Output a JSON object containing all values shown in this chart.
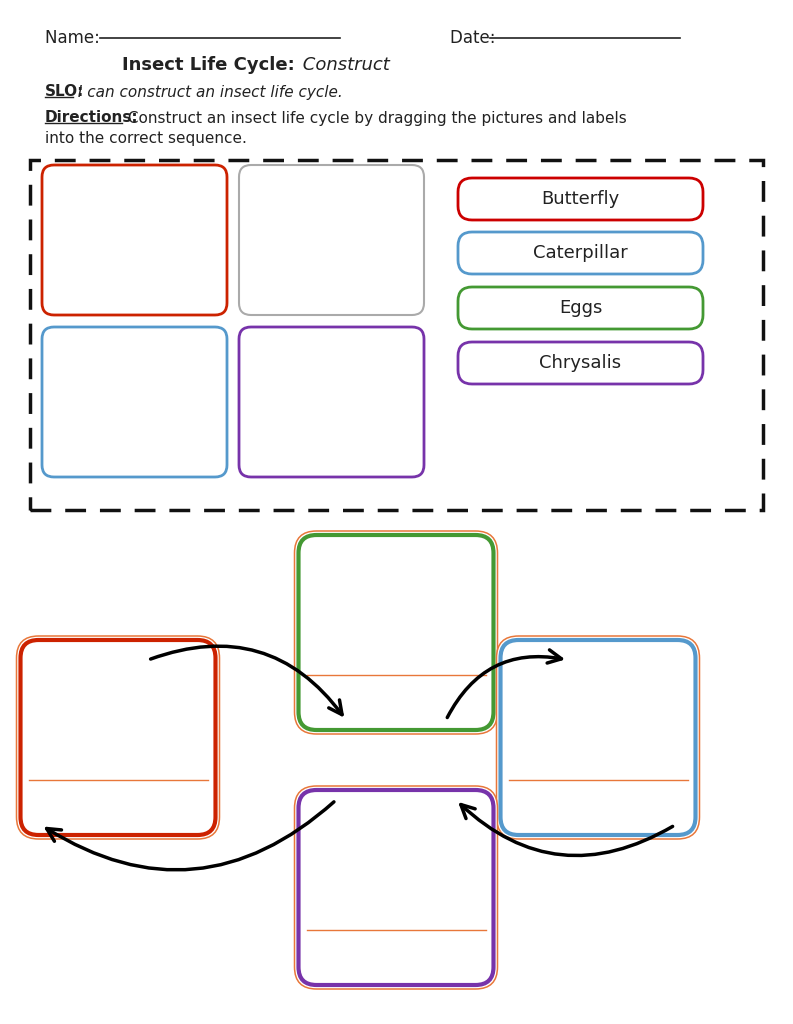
{
  "title_bold": "Insect Life Cycle:",
  "title_italic": " Construct",
  "slo_label": "SLO:",
  "slo_text": " I can construct an insect life cycle.",
  "directions_label": "Directions:",
  "directions_text1": " Construct an insect life cycle by dragging the pictures and labels",
  "directions_text2": "into the correct sequence.",
  "name_label": "Name: ",
  "date_label": "Date: ",
  "labels": [
    "Butterfly",
    "Caterpillar",
    "Eggs",
    "Chrysalis"
  ],
  "label_colors": [
    "#cc0000",
    "#5599cc",
    "#449933",
    "#7733aa"
  ],
  "bg_color": "#ffffff",
  "text_color": "#222222",
  "dashed_box_color": "#111111",
  "cycle_box_colors": [
    "#cc2200",
    "#449933",
    "#5599cc",
    "#7733aa"
  ],
  "orange_line_color": "#e8773a",
  "img_box_colors_top_left": "#cc2200",
  "img_box_colors_top_right": "#aaaaaa",
  "img_box_colors_bot_left": "#5599cc",
  "img_box_colors_bot_right": "#7733aa"
}
